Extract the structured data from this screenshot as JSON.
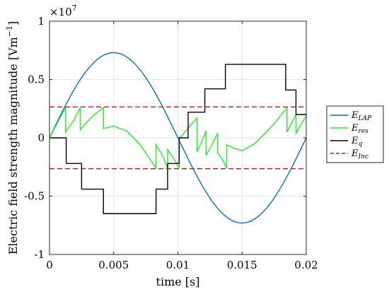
{
  "chart_data": {
    "type": "line",
    "title": "",
    "xlabel": "time [s]",
    "ylabel": "Electric field strength magnitude [Vm",
    "ylabel_exponent": "−1",
    "ylabel_close": "]",
    "y_scale_label": "×10",
    "y_scale_exponent": "7",
    "xlim": [
      0,
      0.02
    ],
    "ylim": [
      -1,
      1
    ],
    "y_multiplier": 10000000,
    "grid": true,
    "legend_position": "outside-right",
    "x_ticks": [
      0,
      0.005,
      0.01,
      0.015,
      0.02
    ],
    "x_tick_labels": [
      "0",
      "0.005",
      "0.01",
      "0.015",
      "0.02"
    ],
    "y_ticks": [
      -1,
      -0.5,
      0,
      0.5,
      1
    ],
    "y_tick_labels": [
      "-1",
      "-0.5",
      "0",
      "0.5",
      "1"
    ],
    "series": [
      {
        "name": "E",
        "subscript": "LAP",
        "color": "#0072BD",
        "style": "solid",
        "kind": "sine",
        "amplitude": 0.73,
        "period": 0.02
      },
      {
        "name": "E",
        "subscript": "res",
        "color": "#22EE22",
        "style": "solid",
        "kind": "sawtooth",
        "points": [
          [
            0,
            0
          ],
          [
            0.00125,
            0.26
          ],
          [
            0.00125,
            0.05
          ],
          [
            0.0019,
            0.15
          ],
          [
            0.0024,
            0.26
          ],
          [
            0.0024,
            0.07
          ],
          [
            0.0032,
            0.17
          ],
          [
            0.0042,
            0.26
          ],
          [
            0.0042,
            0.08
          ],
          [
            0.005,
            0.1
          ],
          [
            0.006,
            0.06
          ],
          [
            0.007,
            -0.05
          ],
          [
            0.0083,
            -0.26
          ],
          [
            0.0083,
            -0.06
          ],
          [
            0.0088,
            -0.15
          ],
          [
            0.0092,
            -0.26
          ],
          [
            0.0092,
            -0.1
          ],
          [
            0.0097,
            -0.18
          ],
          [
            0.0101,
            -0.26
          ],
          [
            0.0101,
            -0.01
          ],
          [
            0.011,
            0.11
          ],
          [
            0.0115,
            0.17
          ],
          [
            0.0115,
            -0.12
          ],
          [
            0.0118,
            -0.05
          ],
          [
            0.0122,
            0.06
          ],
          [
            0.0122,
            -0.15
          ],
          [
            0.0126,
            -0.07
          ],
          [
            0.0131,
            0.04
          ],
          [
            0.0131,
            -0.13
          ],
          [
            0.0135,
            -0.19
          ],
          [
            0.0138,
            -0.26
          ],
          [
            0.0138,
            -0.06
          ],
          [
            0.0144,
            -0.09
          ],
          [
            0.015,
            -0.11
          ],
          [
            0.016,
            -0.05
          ],
          [
            0.0175,
            0.12
          ],
          [
            0.0185,
            0.26
          ],
          [
            0.0185,
            0.05
          ],
          [
            0.0192,
            0.2
          ],
          [
            0.0192,
            0.04
          ],
          [
            0.02,
            0.19
          ]
        ]
      },
      {
        "name": "E",
        "subscript": "q",
        "color": "#000000",
        "style": "solid",
        "kind": "staircase",
        "points": [
          [
            0,
            0
          ],
          [
            0.0013,
            0
          ],
          [
            0.0013,
            -0.22
          ],
          [
            0.0025,
            -0.22
          ],
          [
            0.0025,
            -0.44
          ],
          [
            0.0042,
            -0.44
          ],
          [
            0.0042,
            -0.65
          ],
          [
            0.0083,
            -0.65
          ],
          [
            0.0083,
            -0.44
          ],
          [
            0.0092,
            -0.44
          ],
          [
            0.0092,
            -0.22
          ],
          [
            0.0101,
            -0.22
          ],
          [
            0.0101,
            0
          ],
          [
            0.0108,
            0
          ],
          [
            0.0108,
            0.22
          ],
          [
            0.0121,
            0.22
          ],
          [
            0.0121,
            0.42
          ],
          [
            0.0137,
            0.42
          ],
          [
            0.0137,
            0.63
          ],
          [
            0.0184,
            0.63
          ],
          [
            0.0184,
            0.41
          ],
          [
            0.0192,
            0.41
          ],
          [
            0.0192,
            0.2
          ],
          [
            0.02,
            0.2
          ]
        ]
      },
      {
        "name": "E",
        "subscript": "Inc",
        "color": "#DD1111",
        "style": "dashed",
        "kind": "hlines",
        "values": [
          0.265,
          -0.265
        ]
      }
    ]
  }
}
